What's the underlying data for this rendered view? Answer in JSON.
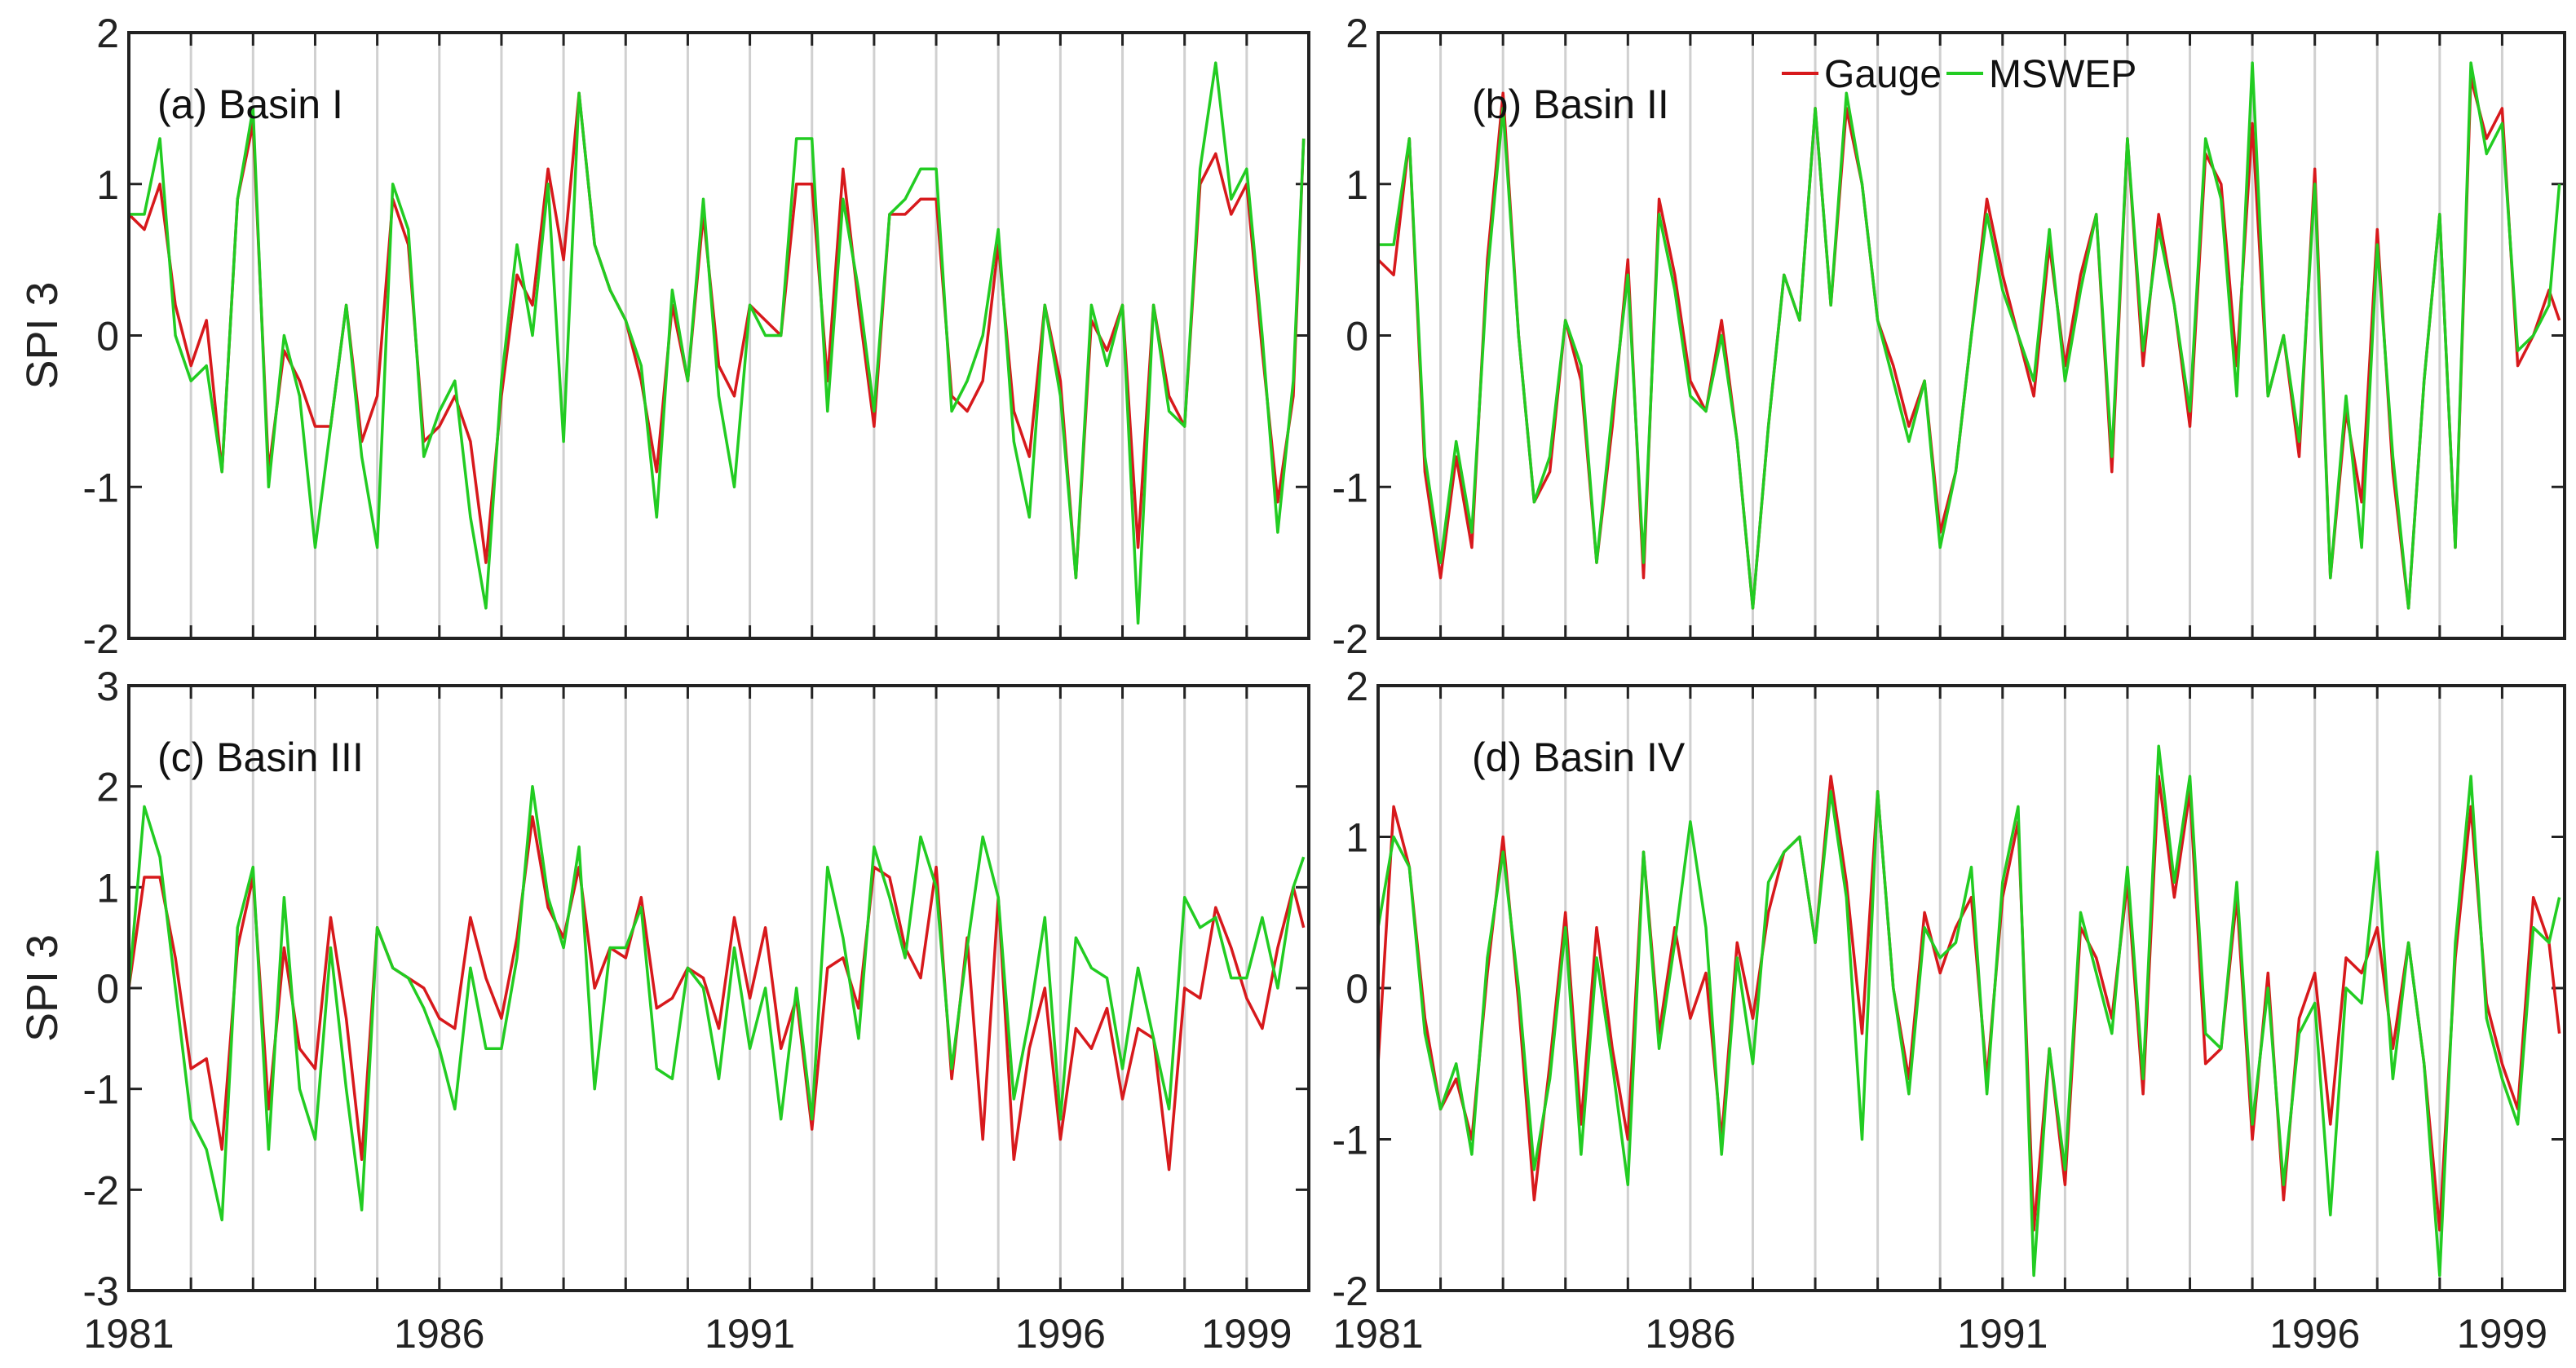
{
  "chart_data": {
    "type": "line",
    "colors": {
      "Gauge": "#d7191c",
      "MSWEP": "#22cc22",
      "grid": "#d0d0d0"
    },
    "legend": {
      "placement": "top-center of panel (b)",
      "entries": [
        "Gauge",
        "MSWEP"
      ]
    },
    "grid": "vertical yearly lines",
    "xlim": [
      "1981-01",
      "1999-12"
    ],
    "xticks": [
      "1981",
      "1986",
      "1991",
      "1996",
      "1999"
    ],
    "x": [
      "1981-01",
      "1981-04",
      "1981-07",
      "1981-10",
      "1982-01",
      "1982-04",
      "1982-07",
      "1982-10",
      "1983-01",
      "1983-04",
      "1983-07",
      "1983-10",
      "1984-01",
      "1984-04",
      "1984-07",
      "1984-10",
      "1985-01",
      "1985-04",
      "1985-07",
      "1985-10",
      "1986-01",
      "1986-04",
      "1986-07",
      "1986-10",
      "1987-01",
      "1987-04",
      "1987-07",
      "1987-10",
      "1988-01",
      "1988-04",
      "1988-07",
      "1988-10",
      "1989-01",
      "1989-04",
      "1989-07",
      "1989-10",
      "1990-01",
      "1990-04",
      "1990-07",
      "1990-10",
      "1991-01",
      "1991-04",
      "1991-07",
      "1991-10",
      "1992-01",
      "1992-04",
      "1992-07",
      "1992-10",
      "1993-01",
      "1993-04",
      "1993-07",
      "1993-10",
      "1994-01",
      "1994-04",
      "1994-07",
      "1994-10",
      "1995-01",
      "1995-04",
      "1995-07",
      "1995-10",
      "1996-01",
      "1996-04",
      "1996-07",
      "1996-10",
      "1997-01",
      "1997-04",
      "1997-07",
      "1997-10",
      "1998-01",
      "1998-04",
      "1998-07",
      "1998-10",
      "1999-01",
      "1999-04",
      "1999-07",
      "1999-10",
      "1999-12"
    ],
    "ylabel": "SPI 3",
    "panels": [
      {
        "label": "(a) Basin I",
        "ylim": [
          -2,
          2
        ],
        "yticks": [
          -2,
          -1,
          0,
          1,
          2
        ],
        "show_ylabel": true,
        "series": [
          {
            "name": "Gauge",
            "values": [
              0.8,
              0.7,
              1.0,
              0.2,
              -0.2,
              0.1,
              -0.9,
              0.9,
              1.4,
              -0.9,
              -0.1,
              -0.3,
              -0.6,
              -0.6,
              0.2,
              -0.7,
              -0.4,
              0.9,
              0.6,
              -0.7,
              -0.6,
              -0.4,
              -0.7,
              -1.5,
              -0.4,
              0.4,
              0.2,
              1.1,
              0.5,
              1.6,
              0.6,
              0.3,
              0.1,
              -0.3,
              -0.9,
              0.2,
              -0.3,
              0.8,
              -0.2,
              -0.4,
              0.2,
              0.1,
              0.0,
              1.0,
              1.0,
              -0.3,
              1.1,
              0.2,
              -0.6,
              0.8,
              0.8,
              0.9,
              0.9,
              -0.4,
              -0.5,
              -0.3,
              0.6,
              -0.5,
              -0.8,
              0.2,
              -0.3,
              -1.6,
              0.1,
              -0.1,
              0.2,
              -1.4,
              0.2,
              -0.4,
              -0.6,
              1.0,
              1.2,
              0.8,
              1.0,
              -0.1,
              -1.1,
              -0.4,
              1.3
            ]
          },
          {
            "name": "MSWEP",
            "values": [
              0.8,
              0.8,
              1.3,
              0.0,
              -0.3,
              -0.2,
              -0.9,
              0.9,
              1.5,
              -1.0,
              0.0,
              -0.4,
              -1.4,
              -0.6,
              0.2,
              -0.8,
              -1.4,
              1.0,
              0.7,
              -0.8,
              -0.5,
              -0.3,
              -1.2,
              -1.8,
              -0.3,
              0.6,
              0.0,
              1.0,
              -0.7,
              1.6,
              0.6,
              0.3,
              0.1,
              -0.2,
              -1.2,
              0.3,
              -0.3,
              0.9,
              -0.4,
              -1.0,
              0.2,
              0.0,
              0.0,
              1.3,
              1.3,
              -0.5,
              0.9,
              0.3,
              -0.5,
              0.8,
              0.9,
              1.1,
              1.1,
              -0.5,
              -0.3,
              0.0,
              0.7,
              -0.7,
              -1.2,
              0.2,
              -0.4,
              -1.6,
              0.2,
              -0.2,
              0.2,
              -1.9,
              0.2,
              -0.5,
              -0.6,
              1.1,
              1.8,
              0.9,
              1.1,
              0.0,
              -1.3,
              -0.3,
              1.3
            ]
          }
        ]
      },
      {
        "label": "(b) Basin II",
        "ylim": [
          -2,
          2
        ],
        "yticks": [
          -2,
          -1,
          0,
          1,
          2
        ],
        "show_ylabel": false,
        "series": [
          {
            "name": "Gauge",
            "values": [
              0.5,
              0.4,
              1.3,
              -0.9,
              -1.6,
              -0.8,
              -1.4,
              0.5,
              1.6,
              0.0,
              -1.1,
              -0.9,
              0.1,
              -0.3,
              -1.5,
              -0.6,
              0.5,
              -1.6,
              0.9,
              0.4,
              -0.3,
              -0.5,
              0.1,
              -0.7,
              -1.8,
              -0.6,
              0.4,
              0.1,
              1.5,
              0.2,
              1.5,
              1.0,
              0.1,
              -0.2,
              -0.6,
              -0.3,
              -1.3,
              -0.9,
              0.0,
              0.9,
              0.4,
              0.0,
              -0.4,
              0.6,
              -0.2,
              0.4,
              0.8,
              -0.9,
              1.3,
              -0.2,
              0.8,
              0.2,
              -0.6,
              1.2,
              1.0,
              -0.2,
              1.4,
              -0.4,
              0.0,
              -0.8,
              1.1,
              -1.6,
              -0.5,
              -1.1,
              0.7,
              -0.9,
              -1.8,
              -0.3,
              0.8,
              -1.4,
              1.7,
              1.3,
              1.5,
              -0.2,
              0.0,
              0.3,
              0.1
            ]
          },
          {
            "name": "MSWEP",
            "values": [
              0.6,
              0.6,
              1.3,
              -0.8,
              -1.5,
              -0.7,
              -1.3,
              0.4,
              1.5,
              0.0,
              -1.1,
              -0.8,
              0.1,
              -0.2,
              -1.5,
              -0.5,
              0.4,
              -1.5,
              0.8,
              0.3,
              -0.4,
              -0.5,
              0.0,
              -0.7,
              -1.8,
              -0.6,
              0.4,
              0.1,
              1.5,
              0.2,
              1.6,
              1.0,
              0.1,
              -0.3,
              -0.7,
              -0.3,
              -1.4,
              -0.9,
              0.0,
              0.8,
              0.3,
              0.0,
              -0.3,
              0.7,
              -0.3,
              0.3,
              0.8,
              -0.8,
              1.3,
              -0.1,
              0.7,
              0.2,
              -0.5,
              1.3,
              0.9,
              -0.4,
              1.8,
              -0.4,
              0.0,
              -0.7,
              1.0,
              -1.6,
              -0.4,
              -1.4,
              0.6,
              -0.8,
              -1.8,
              -0.3,
              0.8,
              -1.4,
              1.8,
              1.2,
              1.4,
              -0.1,
              0.0,
              0.2,
              1.0
            ]
          }
        ]
      },
      {
        "label": "(c) Basin III",
        "ylim": [
          -3,
          3
        ],
        "yticks": [
          -3,
          -2,
          -1,
          0,
          1,
          2,
          3
        ],
        "show_ylabel": true,
        "series": [
          {
            "name": "Gauge",
            "values": [
              0.0,
              1.1,
              1.1,
              0.3,
              -0.8,
              -0.7,
              -1.6,
              0.4,
              1.1,
              -1.2,
              0.4,
              -0.6,
              -0.8,
              0.7,
              -0.3,
              -1.7,
              0.6,
              0.2,
              0.1,
              0.0,
              -0.3,
              -0.4,
              0.7,
              0.1,
              -0.3,
              0.5,
              1.7,
              0.8,
              0.5,
              1.2,
              0.0,
              0.4,
              0.3,
              0.9,
              -0.2,
              -0.1,
              0.2,
              0.1,
              -0.4,
              0.7,
              -0.1,
              0.6,
              -0.6,
              -0.1,
              -1.4,
              0.2,
              0.3,
              -0.2,
              1.2,
              1.1,
              0.4,
              0.1,
              1.2,
              -0.9,
              0.5,
              -1.5,
              0.9,
              -1.7,
              -0.6,
              0.0,
              -1.5,
              -0.4,
              -0.6,
              -0.2,
              -1.1,
              -0.4,
              -0.5,
              -1.8,
              0.0,
              -0.1,
              0.8,
              0.4,
              -0.1,
              -0.4,
              0.4,
              1.0,
              0.6
            ]
          },
          {
            "name": "MSWEP",
            "values": [
              0.0,
              1.8,
              1.3,
              0.0,
              -1.3,
              -1.6,
              -2.3,
              0.6,
              1.2,
              -1.6,
              0.9,
              -1.0,
              -1.5,
              0.4,
              -1.0,
              -2.2,
              0.6,
              0.2,
              0.1,
              -0.2,
              -0.6,
              -1.2,
              0.2,
              -0.6,
              -0.6,
              0.3,
              2.0,
              0.9,
              0.4,
              1.4,
              -1.0,
              0.4,
              0.4,
              0.8,
              -0.8,
              -0.9,
              0.2,
              0.0,
              -0.9,
              0.4,
              -0.6,
              0.0,
              -1.3,
              0.0,
              -1.3,
              1.2,
              0.5,
              -0.5,
              1.4,
              0.9,
              0.3,
              1.5,
              1.0,
              -0.8,
              0.4,
              1.5,
              0.9,
              -1.1,
              -0.3,
              0.7,
              -1.3,
              0.5,
              0.2,
              0.1,
              -0.8,
              0.2,
              -0.5,
              -1.2,
              0.9,
              0.6,
              0.7,
              0.1,
              0.1,
              0.7,
              0.0,
              1.0,
              1.3
            ]
          }
        ]
      },
      {
        "label": "(d) Basin IV",
        "ylim": [
          -2,
          2
        ],
        "yticks": [
          -2,
          -1,
          0,
          1,
          2
        ],
        "show_ylabel": false,
        "series": [
          {
            "name": "Gauge",
            "values": [
              -0.5,
              1.2,
              0.8,
              -0.2,
              -0.8,
              -0.6,
              -1.0,
              0.1,
              1.0,
              -0.1,
              -1.4,
              -0.5,
              0.5,
              -0.9,
              0.4,
              -0.4,
              -1.0,
              0.9,
              -0.3,
              0.4,
              -0.2,
              0.1,
              -1.0,
              0.3,
              -0.2,
              0.5,
              0.9,
              1.0,
              0.3,
              1.4,
              0.7,
              -0.3,
              1.3,
              0.0,
              -0.6,
              0.5,
              0.1,
              0.4,
              0.6,
              -0.6,
              0.6,
              1.1,
              -1.6,
              -0.4,
              -1.3,
              0.4,
              0.2,
              -0.2,
              0.7,
              -0.7,
              1.4,
              0.6,
              1.3,
              -0.5,
              -0.4,
              0.6,
              -1.0,
              0.1,
              -1.4,
              -0.2,
              0.1,
              -0.9,
              0.2,
              0.1,
              0.4,
              -0.4,
              0.3,
              -0.5,
              -1.6,
              0.2,
              1.2,
              -0.1,
              -0.5,
              -0.8,
              0.6,
              0.3,
              -0.3
            ]
          },
          {
            "name": "MSWEP",
            "values": [
              0.4,
              1.0,
              0.8,
              -0.3,
              -0.8,
              -0.5,
              -1.1,
              0.2,
              0.9,
              0.0,
              -1.2,
              -0.6,
              0.4,
              -1.1,
              0.2,
              -0.5,
              -1.3,
              0.9,
              -0.4,
              0.3,
              1.1,
              0.4,
              -1.1,
              0.2,
              -0.5,
              0.7,
              0.9,
              1.0,
              0.3,
              1.3,
              0.6,
              -1.0,
              1.3,
              0.0,
              -0.7,
              0.4,
              0.2,
              0.3,
              0.8,
              -0.7,
              0.7,
              1.2,
              -1.9,
              -0.4,
              -1.2,
              0.5,
              0.1,
              -0.3,
              0.8,
              -0.6,
              1.6,
              0.7,
              1.4,
              -0.3,
              -0.4,
              0.7,
              -0.9,
              0.0,
              -1.3,
              -0.3,
              -0.1,
              -1.5,
              0.0,
              -0.1,
              0.9,
              -0.6,
              0.3,
              -0.5,
              -1.9,
              0.3,
              1.4,
              -0.2,
              -0.6,
              -0.9,
              0.4,
              0.3,
              0.6
            ]
          }
        ]
      }
    ]
  }
}
